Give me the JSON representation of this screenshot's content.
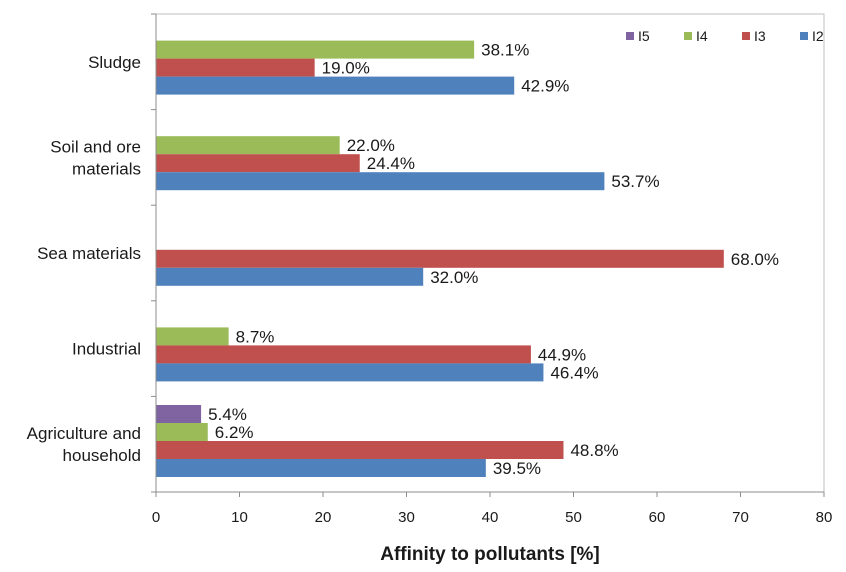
{
  "chart_data": {
    "type": "bar",
    "orientation": "horizontal",
    "categories": [
      "Sludge",
      "Soil and ore materials",
      "Sea materials",
      "Industrial",
      "Agriculture and household"
    ],
    "category_label_lines": [
      [
        "Sludge"
      ],
      [
        "Soil and ore",
        "materials"
      ],
      [
        "Sea materials"
      ],
      [
        "Industrial"
      ],
      [
        "Agriculture and",
        "household"
      ]
    ],
    "series": [
      {
        "name": "I5",
        "color": "#8064A2",
        "values": [
          null,
          null,
          null,
          null,
          5.4
        ],
        "labels": [
          "",
          "",
          "",
          "",
          "5.4%"
        ]
      },
      {
        "name": "I4",
        "color": "#9BBB59",
        "values": [
          38.1,
          22.0,
          null,
          8.7,
          6.2
        ],
        "labels": [
          "38.1%",
          "22.0%",
          "",
          "8.7%",
          "6.2%"
        ]
      },
      {
        "name": "I3",
        "color": "#C0504D",
        "values": [
          19.0,
          24.4,
          68.0,
          44.9,
          48.8
        ],
        "labels": [
          "19.0%",
          "24.4%",
          "68.0%",
          "44.9%",
          "48.8%"
        ]
      },
      {
        "name": "I2",
        "color": "#4F81BD",
        "values": [
          42.9,
          53.7,
          32.0,
          46.4,
          39.5
        ],
        "labels": [
          "42.9%",
          "53.7%",
          "32.0%",
          "46.4%",
          "39.5%"
        ]
      }
    ],
    "xlabel": "Affinity to pollutants [%]",
    "ylabel": "",
    "xlim": [
      0,
      80
    ],
    "xticks": [
      "0",
      "10",
      "20",
      "30",
      "40",
      "50",
      "60",
      "70",
      "80"
    ],
    "grid": false,
    "legend": {
      "position": "top-right",
      "entries": [
        {
          "name": "I5",
          "color": "#8064A2"
        },
        {
          "name": "I4",
          "color": "#9BBB59"
        },
        {
          "name": "I3",
          "color": "#C0504D"
        },
        {
          "name": "I2",
          "color": "#4F81BD"
        }
      ]
    }
  }
}
